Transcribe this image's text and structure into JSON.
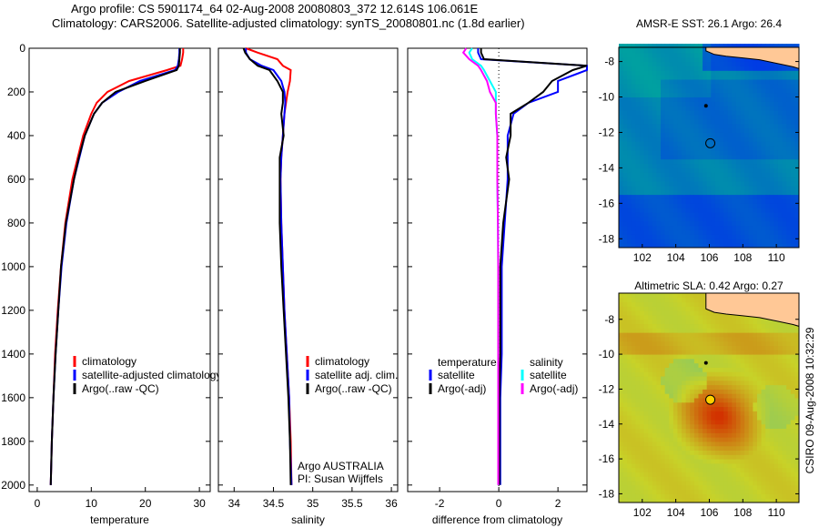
{
  "header": {
    "line1": "Argo profile: CS 5901174_64 02-Aug-2008 20080803_372 12.614S 106.061E",
    "line2": "Climatology: CARS2006. Satellite-adjusted climatology: synTS_20080801.nc (1.8d earlier)"
  },
  "footer_stamp": "CSIRO 09-Aug-2008 10:32:29",
  "colors": {
    "clim": "#ff0000",
    "sat": "#0000ff",
    "argo": "#000000",
    "sal_sat": "#00ffff",
    "sal_argo": "#ff00ff",
    "land": "#ffc896"
  },
  "chart_data": [
    {
      "type": "line",
      "id": "temperature",
      "xlabel": "temperature",
      "xlim": [
        -1.5,
        32
      ],
      "ylim": [
        0,
        2030
      ],
      "xticks": [
        0,
        10,
        20,
        30
      ],
      "yticks": [
        0,
        200,
        400,
        600,
        800,
        1000,
        1200,
        1400,
        1600,
        1800,
        2000
      ],
      "depth": [
        0,
        20,
        50,
        80,
        100,
        150,
        200,
        250,
        300,
        400,
        500,
        600,
        800,
        1000,
        1200,
        1400,
        1600,
        1800,
        2000
      ],
      "series": [
        {
          "name": "climatology",
          "key": "clim",
          "values": [
            27,
            27,
            26.8,
            26.5,
            24,
            17,
            13,
            11,
            10,
            8.5,
            7.5,
            6.5,
            5.2,
            4.4,
            3.8,
            3.3,
            3.0,
            2.7,
            2.5
          ]
        },
        {
          "name": "satellite-adjusted climatology",
          "key": "sat",
          "values": [
            26.3,
            26.3,
            26.2,
            26,
            25.5,
            19,
            15,
            12,
            10.5,
            8.8,
            7.8,
            6.8,
            5.4,
            4.5,
            3.9,
            3.4,
            3.0,
            2.7,
            2.5
          ]
        },
        {
          "name": "Argo(..raw -QC)",
          "key": "argo",
          "values": [
            26.4,
            26.4,
            26.3,
            26.2,
            25.8,
            20,
            14.5,
            12,
            10.5,
            8.8,
            7.7,
            6.8,
            5.3,
            4.4,
            3.9,
            3.4,
            3.0,
            2.7,
            2.5
          ]
        }
      ],
      "legend": [
        "climatology",
        "satellite-adjusted climatology",
        "Argo(..raw -QC)"
      ]
    },
    {
      "type": "line",
      "id": "salinity",
      "xlabel": "salinity",
      "xlim": [
        33.8,
        36.08
      ],
      "ylim": [
        0,
        2030
      ],
      "xticks": [
        34,
        34.5,
        35,
        35.5,
        36
      ],
      "depth": [
        0,
        20,
        50,
        80,
        100,
        150,
        200,
        250,
        300,
        400,
        500,
        600,
        800,
        1000,
        1200,
        1400,
        1600,
        1800,
        2000
      ],
      "series": [
        {
          "name": "climatology",
          "key": "clim",
          "values": [
            34.15,
            34.3,
            34.55,
            34.62,
            34.72,
            34.71,
            34.68,
            34.66,
            34.64,
            34.62,
            34.6,
            34.59,
            34.6,
            34.62,
            34.64,
            34.67,
            34.7,
            34.72,
            34.73
          ]
        },
        {
          "name": "satellite adj. clim.",
          "key": "sat",
          "values": [
            34.15,
            34.15,
            34.2,
            34.35,
            34.5,
            34.6,
            34.64,
            34.65,
            34.64,
            34.62,
            34.6,
            34.59,
            34.6,
            34.62,
            34.64,
            34.67,
            34.7,
            34.71,
            34.73
          ]
        },
        {
          "name": "Argo(..raw -QC)",
          "key": "argo",
          "values": [
            34.12,
            34.14,
            34.2,
            34.3,
            34.45,
            34.55,
            34.62,
            34.62,
            34.6,
            34.63,
            34.58,
            34.58,
            34.58,
            34.6,
            34.63,
            34.66,
            34.69,
            34.71,
            34.72
          ]
        }
      ],
      "legend": [
        "climatology",
        "satellite adj. clim.",
        "Argo(..raw -QC)"
      ],
      "annotation": [
        "Argo AUSTRALIA",
        "PI: Susan Wijffels"
      ]
    },
    {
      "type": "line",
      "id": "difference",
      "xlabel": "difference from climatology",
      "xlim": [
        -3.08,
        2.98
      ],
      "ylim": [
        0,
        2030
      ],
      "xticks": [
        -2,
        0,
        2
      ],
      "depth": [
        0,
        20,
        50,
        80,
        100,
        150,
        200,
        250,
        300,
        400,
        500,
        600,
        800,
        1000,
        1200,
        1400,
        1600,
        1800,
        2000
      ],
      "series": [
        {
          "name": "temperature satellite",
          "key": "sat",
          "values": [
            -0.7,
            -0.7,
            -0.6,
            3.5,
            3.0,
            2.0,
            2.0,
            1.0,
            0.5,
            0.3,
            0.3,
            0.3,
            0.2,
            0.1,
            0.1,
            0.1,
            0.05,
            0.05,
            0.05
          ]
        },
        {
          "name": "temperature Argo(-adj)",
          "key": "argo",
          "values": [
            -0.6,
            -0.6,
            -0.5,
            3.2,
            2.5,
            1.8,
            1.5,
            1.0,
            0.4,
            0.4,
            0.25,
            0.35,
            0.15,
            0.05,
            0.05,
            0.05,
            0.02,
            0.02,
            0.02
          ]
        },
        {
          "name": "salinity satellite",
          "key": "sal_sat",
          "values": [
            -0.9,
            -1.0,
            -0.9,
            -0.6,
            -0.5,
            -0.3,
            -0.1,
            -0.1,
            -0.1,
            -0.05,
            -0.05,
            -0.05,
            -0.03,
            -0.02,
            -0.02,
            -0.02,
            -0.02,
            -0.02,
            -0.02
          ]
        },
        {
          "name": "salinity Argo(-adj)",
          "key": "sal_argo",
          "values": [
            -1.1,
            -1.2,
            -1.0,
            -0.7,
            -0.6,
            -0.4,
            -0.3,
            -0.1,
            -0.1,
            -0.05,
            -0.05,
            -0.05,
            -0.03,
            -0.02,
            -0.02,
            -0.02,
            -0.02,
            -0.02,
            -0.02
          ]
        }
      ],
      "legend_headers": [
        "temperature",
        "salinity"
      ],
      "legend": [
        "satellite",
        "Argo(-adj)",
        "satellite",
        "Argo(-adj)"
      ]
    },
    {
      "type": "heatmap",
      "id": "sst_map",
      "title": "AMSR-E SST: 26.1  Argo: 26.4",
      "xlim": [
        100.6,
        111.35
      ],
      "ylim": [
        -18.5,
        -7.2
      ],
      "xticks": [
        102,
        104,
        106,
        108,
        110
      ],
      "yticks": [
        -8,
        -10,
        -12,
        -14,
        -16,
        -18
      ],
      "argo_position": [
        106.06,
        -12.61
      ],
      "float_trail": [
        105.8,
        -10.5
      ]
    },
    {
      "type": "heatmap",
      "id": "sla_map",
      "title": "Altimetric SLA: 0.42  Argo: 0.27",
      "xlim": [
        100.6,
        111.35
      ],
      "ylim": [
        -18.5,
        -6.5
      ],
      "xticks": [
        102,
        104,
        106,
        108,
        110
      ],
      "yticks": [
        -8,
        -10,
        -12,
        -14,
        -16,
        -18
      ],
      "argo_position": [
        106.06,
        -12.61
      ],
      "float_trail": [
        105.8,
        -10.5
      ]
    }
  ]
}
